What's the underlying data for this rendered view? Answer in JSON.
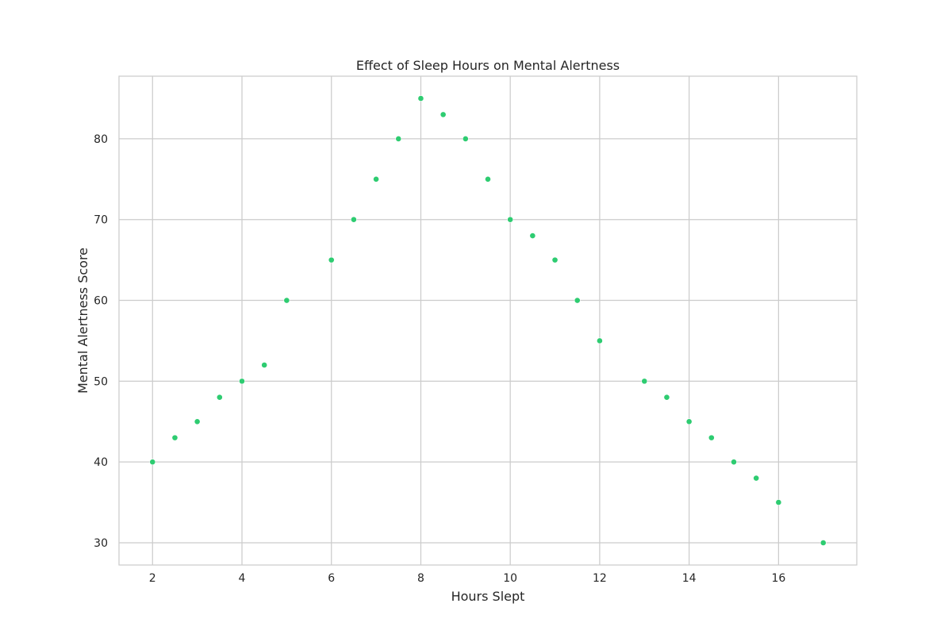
{
  "chart_data": {
    "type": "scatter",
    "title": "Effect of Sleep Hours on Mental Alertness",
    "xlabel": "Hours Slept",
    "ylabel": "Mental Alertness Score",
    "xlim": [
      1.25,
      17.75
    ],
    "ylim": [
      27.25,
      87.75
    ],
    "xticks": [
      2,
      4,
      6,
      8,
      10,
      12,
      14,
      16
    ],
    "yticks": [
      30,
      40,
      50,
      60,
      70,
      80
    ],
    "grid": true,
    "marker_color": "#2ecc71",
    "points": [
      {
        "x": 2,
        "y": 40
      },
      {
        "x": 2.5,
        "y": 43
      },
      {
        "x": 3,
        "y": 45
      },
      {
        "x": 3.5,
        "y": 48
      },
      {
        "x": 4,
        "y": 50
      },
      {
        "x": 4.5,
        "y": 52
      },
      {
        "x": 5,
        "y": 60
      },
      {
        "x": 6,
        "y": 65
      },
      {
        "x": 6.5,
        "y": 70
      },
      {
        "x": 7,
        "y": 75
      },
      {
        "x": 7.5,
        "y": 80
      },
      {
        "x": 8,
        "y": 85
      },
      {
        "x": 8.5,
        "y": 83
      },
      {
        "x": 9,
        "y": 80
      },
      {
        "x": 9.5,
        "y": 75
      },
      {
        "x": 10,
        "y": 70
      },
      {
        "x": 10.5,
        "y": 68
      },
      {
        "x": 11,
        "y": 65
      },
      {
        "x": 11.5,
        "y": 60
      },
      {
        "x": 12,
        "y": 55
      },
      {
        "x": 13,
        "y": 50
      },
      {
        "x": 13.5,
        "y": 48
      },
      {
        "x": 14,
        "y": 45
      },
      {
        "x": 14.5,
        "y": 43
      },
      {
        "x": 15,
        "y": 40
      },
      {
        "x": 15.5,
        "y": 38
      },
      {
        "x": 16,
        "y": 35
      },
      {
        "x": 17,
        "y": 30
      }
    ]
  }
}
